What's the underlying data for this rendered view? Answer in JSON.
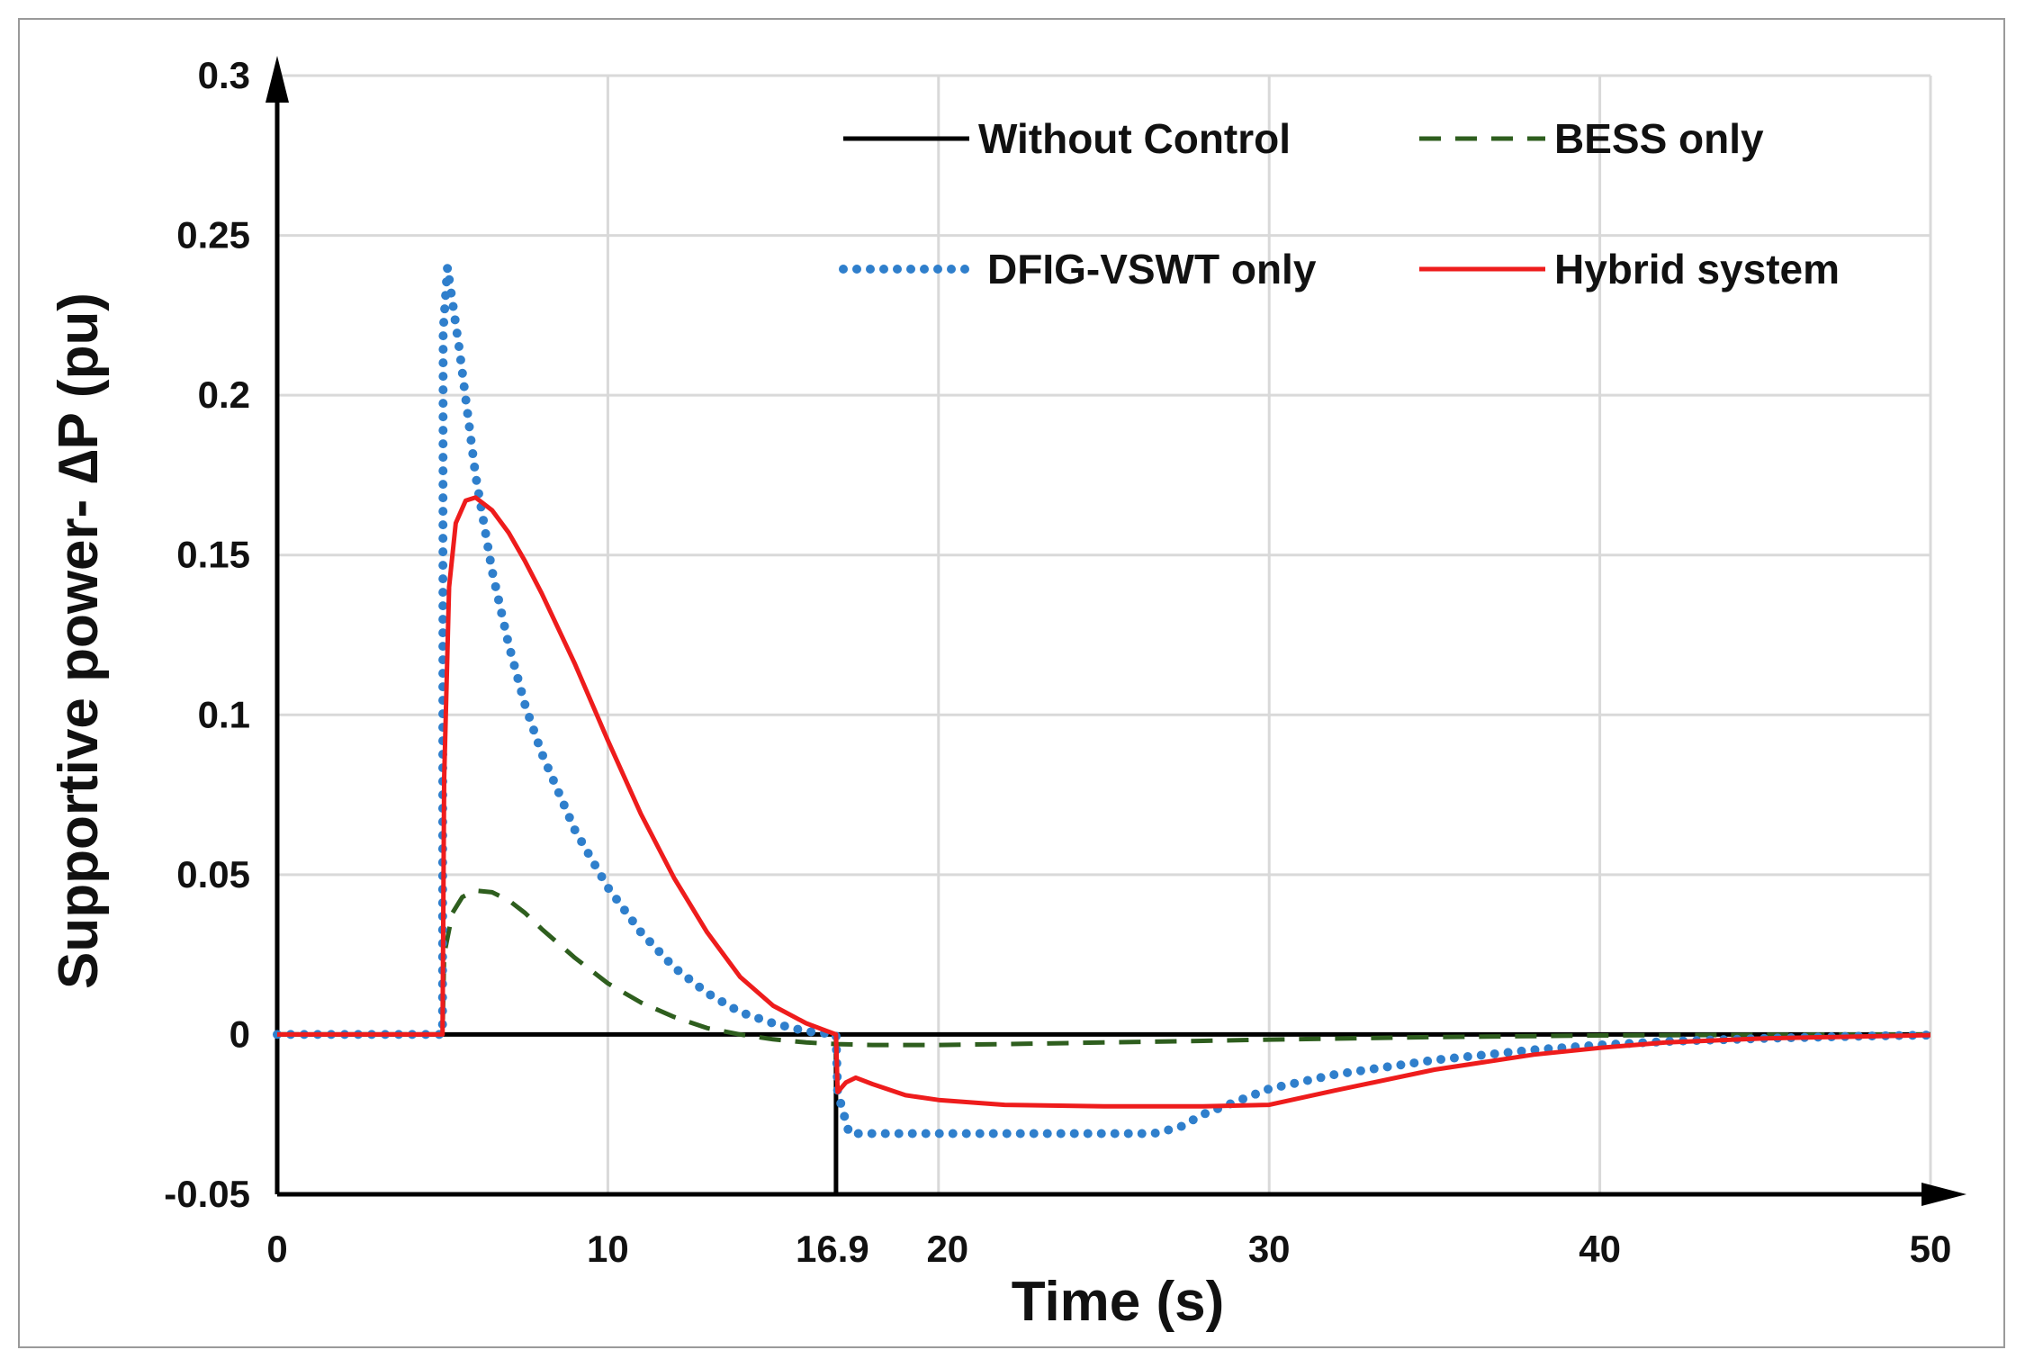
{
  "chart_data": {
    "type": "line",
    "title": "",
    "xlabel": "Time (s)",
    "ylabel": "Supportive power- ∆P (pu)",
    "xlim": [
      0,
      50
    ],
    "ylim": [
      -0.05,
      0.3
    ],
    "grid": true,
    "legend_position": "top-right",
    "x_ticks": [
      0,
      10,
      16.9,
      20,
      30,
      40,
      50
    ],
    "x_tick_labels": [
      "0",
      "10",
      "16.9",
      "20",
      "30",
      "40",
      "50"
    ],
    "y_ticks": [
      -0.05,
      0,
      0.05,
      0.1,
      0.15,
      0.2,
      0.25,
      0.3
    ],
    "y_tick_labels": [
      "-0.05",
      "0",
      "0.05",
      "0.1",
      "0.15",
      "0.2",
      "0.25",
      "0.3"
    ],
    "series": [
      {
        "name": "Without Control",
        "color": "#000000",
        "style": "solid",
        "x": [
          0,
          16.9,
          16.9,
          16.9,
          50
        ],
        "y": [
          0,
          0,
          -0.05,
          0,
          0
        ]
      },
      {
        "name": "BESS only",
        "color": "#2e5e1e",
        "style": "dashed",
        "x": [
          0,
          5,
          5.05,
          5.3,
          5.6,
          6,
          6.5,
          7,
          7.5,
          8,
          9,
          10,
          11,
          12,
          13,
          14,
          15,
          16,
          16.9,
          18,
          20,
          22,
          25,
          28,
          30,
          35,
          40,
          45,
          50
        ],
        "y": [
          0,
          0,
          0.025,
          0.038,
          0.043,
          0.045,
          0.0445,
          0.042,
          0.038,
          0.033,
          0.024,
          0.016,
          0.01,
          0.0055,
          0.002,
          0,
          -0.0015,
          -0.0025,
          -0.003,
          -0.0033,
          -0.0033,
          -0.003,
          -0.0025,
          -0.002,
          -0.0016,
          -0.0008,
          -0.0003,
          -0.0001,
          0
        ]
      },
      {
        "name": "DFIG-VSWT only",
        "color": "#2f7fcc",
        "style": "dotted",
        "x": [
          0,
          5,
          5.02,
          5.15,
          5.5,
          6,
          6.5,
          7,
          7.5,
          8,
          9,
          10,
          11,
          12,
          13,
          14,
          15,
          16,
          16.9,
          16.95,
          17.3,
          18,
          20,
          22,
          25,
          26.5,
          27.3,
          28,
          29,
          30,
          32,
          35,
          38,
          40,
          42,
          45,
          48,
          50
        ],
        "y": [
          0,
          0,
          0.22,
          0.24,
          0.215,
          0.175,
          0.145,
          0.122,
          0.103,
          0.088,
          0.064,
          0.046,
          0.032,
          0.021,
          0.013,
          0.007,
          0.0035,
          0.001,
          0,
          -0.018,
          -0.031,
          -0.031,
          -0.031,
          -0.031,
          -0.031,
          -0.031,
          -0.029,
          -0.025,
          -0.021,
          -0.017,
          -0.0125,
          -0.008,
          -0.0048,
          -0.0033,
          -0.0022,
          -0.0012,
          -0.0005,
          -0.0002
        ]
      },
      {
        "name": "Hybrid system",
        "color": "#ee1c1c",
        "style": "solid",
        "x": [
          0,
          5,
          5.05,
          5.2,
          5.4,
          5.7,
          6,
          6.5,
          7,
          7.5,
          8,
          9,
          10,
          11,
          12,
          13,
          14,
          15,
          16,
          16.9,
          16.95,
          17.2,
          17.5,
          18,
          19,
          20,
          22,
          25,
          28,
          30,
          32,
          35,
          38,
          40,
          42,
          45,
          50
        ],
        "y": [
          0,
          0,
          0.08,
          0.14,
          0.16,
          0.167,
          0.168,
          0.164,
          0.157,
          0.148,
          0.138,
          0.116,
          0.092,
          0.069,
          0.049,
          0.032,
          0.018,
          0.009,
          0.0035,
          0,
          -0.018,
          -0.015,
          -0.0135,
          -0.0155,
          -0.019,
          -0.0205,
          -0.022,
          -0.0225,
          -0.0225,
          -0.022,
          -0.0175,
          -0.011,
          -0.0063,
          -0.0042,
          -0.0025,
          -0.0012,
          -0.0002
        ]
      }
    ]
  }
}
